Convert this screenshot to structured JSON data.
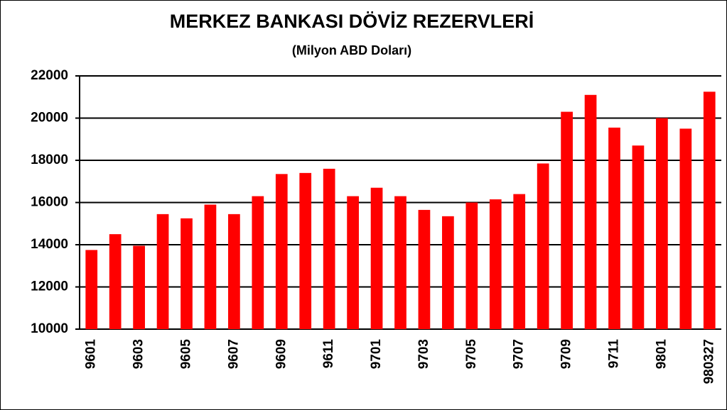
{
  "chart_data": {
    "type": "bar",
    "title": "MERKEZ BANKASI DÖVİZ REZERVLERİ",
    "subtitle": "(Milyon ABD Doları)",
    "categories": [
      "9601",
      null,
      "9603",
      null,
      "9605",
      null,
      "9607",
      null,
      "9609",
      null,
      "9611",
      null,
      "9701",
      null,
      "9703",
      null,
      "9705",
      null,
      "9707",
      null,
      "9709",
      null,
      "9711",
      null,
      "9801",
      null,
      "980327"
    ],
    "values": [
      13750,
      14500,
      13950,
      15450,
      15250,
      15900,
      15450,
      16300,
      17350,
      17400,
      17600,
      16300,
      16700,
      16300,
      15650,
      15350,
      16000,
      16150,
      16400,
      17850,
      20300,
      21100,
      19550,
      18700,
      20000,
      19500,
      21250
    ],
    "color": "#ff0000",
    "ylim": [
      10000,
      22000
    ],
    "yticks": [
      10000,
      12000,
      14000,
      16000,
      18000,
      20000,
      22000
    ],
    "grid": true
  }
}
